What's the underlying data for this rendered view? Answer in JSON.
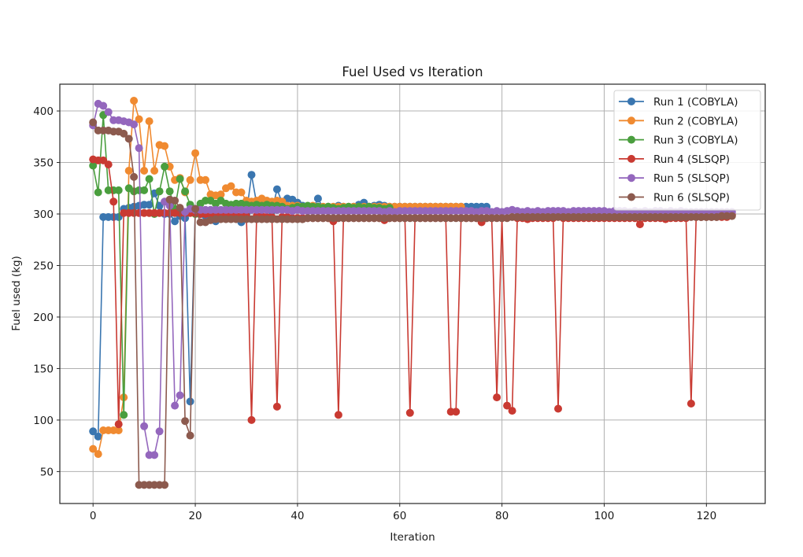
{
  "chart_data": {
    "type": "line",
    "title": "Fuel Used vs Iteration",
    "xlabel": "Iteration",
    "ylabel": "Fuel used (kg)",
    "xlim": [
      -6.5,
      131.5
    ],
    "ylim": [
      19,
      426
    ],
    "xticks": [
      0,
      20,
      40,
      60,
      80,
      100,
      120
    ],
    "yticks": [
      50,
      100,
      150,
      200,
      250,
      300,
      350,
      400
    ],
    "grid": true,
    "legend_position": "upper right",
    "marker": "circle",
    "series": [
      {
        "name": "Run 1 (COBYLA)",
        "color": "#3a76b0",
        "x": [
          0,
          1,
          2,
          3,
          4,
          5,
          6,
          7,
          8,
          9,
          10,
          11,
          12,
          13,
          14,
          15,
          16,
          17,
          18,
          19,
          20,
          21,
          22,
          23,
          24,
          25,
          26,
          27,
          28,
          29,
          30,
          31,
          32,
          33,
          34,
          35,
          36,
          37,
          38,
          39,
          40,
          41,
          42,
          43,
          44,
          45,
          46,
          47,
          48,
          49,
          50,
          51,
          52,
          53,
          54,
          55,
          56,
          57,
          58,
          59,
          60,
          61,
          62,
          63,
          64,
          65,
          66,
          67,
          68,
          69,
          70,
          71,
          72,
          73,
          74,
          75,
          76,
          77
        ],
        "y": [
          89,
          84,
          297,
          297,
          297,
          297,
          305,
          306,
          307,
          308,
          309,
          309,
          320,
          308,
          300,
          300,
          293,
          298,
          296,
          118,
          305,
          300,
          298,
          296,
          293,
          298,
          302,
          299,
          297,
          292,
          300,
          338,
          310,
          308,
          305,
          303,
          324,
          311,
          315,
          314,
          311,
          308,
          306,
          305,
          315,
          306,
          307,
          306,
          308,
          307,
          306,
          307,
          309,
          311,
          307,
          308,
          309,
          308,
          307,
          307,
          307,
          307,
          307,
          307,
          307,
          307,
          307,
          307,
          307,
          307,
          307,
          307,
          307,
          307,
          307,
          307,
          307,
          307
        ]
      },
      {
        "name": "Run 2 (COBYLA)",
        "color": "#f08a30",
        "x": [
          0,
          1,
          2,
          3,
          4,
          5,
          6,
          7,
          8,
          9,
          10,
          11,
          12,
          13,
          14,
          15,
          16,
          17,
          18,
          19,
          20,
          21,
          22,
          23,
          24,
          25,
          26,
          27,
          28,
          29,
          30,
          31,
          32,
          33,
          34,
          35,
          36,
          37,
          38,
          39,
          40,
          41,
          42,
          43,
          44,
          45,
          46,
          47,
          48,
          49,
          50,
          51,
          52,
          53,
          54,
          55,
          56,
          57,
          58,
          59,
          60,
          61,
          62,
          63,
          64,
          65,
          66,
          67,
          68,
          69,
          70,
          71,
          72
        ],
        "y": [
          72,
          67,
          90,
          90,
          90,
          90,
          122,
          342,
          410,
          392,
          342,
          390,
          342,
          367,
          366,
          346,
          333,
          335,
          321,
          333,
          359,
          333,
          333,
          319,
          318,
          319,
          325,
          327,
          321,
          321,
          313,
          312,
          313,
          315,
          313,
          312,
          313,
          312,
          308,
          308,
          308,
          307,
          307,
          308,
          307,
          307,
          307,
          307,
          307,
          307,
          307,
          307,
          307,
          307,
          307,
          307,
          307,
          307,
          307,
          307,
          307,
          307,
          307,
          307,
          307,
          307,
          307,
          307,
          307,
          307,
          307,
          307,
          307
        ]
      },
      {
        "name": "Run 3 (COBYLA)",
        "color": "#4a9e3e",
        "x": [
          0,
          1,
          2,
          3,
          4,
          5,
          6,
          7,
          8,
          9,
          10,
          11,
          12,
          13,
          14,
          15,
          16,
          17,
          18,
          19,
          20,
          21,
          22,
          23,
          24,
          25,
          26,
          27,
          28,
          29,
          30,
          31,
          32,
          33,
          34,
          35,
          36,
          37,
          38,
          39,
          40,
          41,
          42,
          43,
          44,
          45,
          46,
          47,
          48,
          49,
          50,
          51,
          52,
          53,
          54,
          55,
          56,
          57,
          58
        ],
        "y": [
          347,
          321,
          396,
          323,
          323,
          323,
          105,
          325,
          322,
          323,
          323,
          334,
          300,
          322,
          346,
          322,
          305,
          334,
          322,
          309,
          300,
          310,
          313,
          313,
          310,
          313,
          310,
          309,
          310,
          310,
          309,
          308,
          309,
          308,
          309,
          308,
          308,
          307,
          305,
          306,
          307,
          307,
          308,
          307,
          307,
          306,
          307,
          306,
          305,
          306,
          307,
          306,
          307,
          306,
          307,
          306,
          306,
          305,
          306
        ]
      },
      {
        "name": "Run 4 (SLSQP)",
        "color": "#c93a32",
        "x": [
          0,
          1,
          2,
          3,
          4,
          5,
          6,
          7,
          8,
          9,
          10,
          11,
          12,
          13,
          14,
          15,
          16,
          17,
          18,
          19,
          20,
          21,
          22,
          23,
          24,
          25,
          26,
          27,
          28,
          29,
          30,
          31,
          32,
          33,
          34,
          35,
          36,
          37,
          38,
          39,
          40,
          41,
          42,
          43,
          44,
          45,
          46,
          47,
          48,
          49,
          50,
          51,
          52,
          53,
          54,
          55,
          56,
          57,
          58,
          59,
          60,
          61,
          62,
          63,
          64,
          65,
          66,
          67,
          68,
          69,
          70,
          71,
          72,
          73,
          74,
          75,
          76,
          77,
          78,
          79,
          80,
          81,
          82,
          83,
          84,
          85,
          86,
          87,
          88,
          89,
          90,
          91,
          92,
          93,
          94,
          95,
          96,
          97,
          98,
          99,
          100,
          101,
          102,
          103,
          104,
          105,
          106,
          107,
          108,
          109,
          110,
          111,
          112,
          113,
          114,
          115,
          116,
          117,
          118,
          119,
          120,
          121,
          122,
          123,
          124,
          125
        ],
        "y": [
          353,
          352,
          352,
          348,
          312,
          96,
          301,
          301,
          301,
          301,
          301,
          301,
          301,
          301,
          301,
          301,
          301,
          301,
          301,
          301,
          301,
          300,
          300,
          300,
          299,
          299,
          299,
          299,
          298,
          298,
          298,
          100,
          298,
          298,
          297,
          297,
          113,
          297,
          297,
          296,
          296,
          296,
          296,
          296,
          296,
          296,
          296,
          293,
          105,
          296,
          296,
          296,
          296,
          296,
          296,
          296,
          296,
          294,
          296,
          296,
          296,
          296,
          107,
          296,
          296,
          296,
          296,
          296,
          296,
          296,
          108,
          108,
          296,
          296,
          296,
          296,
          292,
          296,
          296,
          122,
          296,
          114,
          109,
          296,
          296,
          295,
          296,
          296,
          296,
          296,
          296,
          111,
          296,
          296,
          296,
          296,
          296,
          296,
          296,
          296,
          296,
          296,
          296,
          296,
          296,
          296,
          296,
          290,
          296,
          296,
          296,
          296,
          295,
          296,
          296,
          296,
          296,
          116,
          297,
          297,
          297,
          297,
          297,
          297,
          297,
          299
        ]
      },
      {
        "name": "Run 5 (SLSQP)",
        "color": "#9467bd",
        "x": [
          0,
          1,
          2,
          3,
          4,
          5,
          6,
          7,
          8,
          9,
          10,
          11,
          12,
          13,
          14,
          15,
          16,
          17,
          18,
          19,
          20,
          21,
          22,
          23,
          24,
          25,
          26,
          27,
          28,
          29,
          30,
          31,
          32,
          33,
          34,
          35,
          36,
          37,
          38,
          39,
          40,
          41,
          42,
          43,
          44,
          45,
          46,
          47,
          48,
          49,
          50,
          51,
          52,
          53,
          54,
          55,
          56,
          57,
          58,
          59,
          60,
          61,
          62,
          63,
          64,
          65,
          66,
          67,
          68,
          69,
          70,
          71,
          72,
          73,
          74,
          75,
          76,
          77,
          78,
          79,
          80,
          81,
          82,
          83,
          84,
          85,
          86,
          87,
          88,
          89,
          90,
          91,
          92,
          93,
          94,
          95,
          96,
          97,
          98,
          99,
          100,
          101,
          102,
          103,
          104,
          105,
          106,
          107,
          108,
          109,
          110,
          111,
          112,
          113,
          114,
          115,
          116,
          117,
          118,
          119,
          120,
          121,
          122,
          123,
          124,
          125
        ],
        "y": [
          386,
          407,
          405,
          399,
          391,
          391,
          390,
          389,
          387,
          364,
          94,
          66,
          66,
          89,
          312,
          308,
          114,
          124,
          302,
          305,
          304,
          304,
          304,
          304,
          304,
          304,
          304,
          304,
          304,
          304,
          304,
          304,
          304,
          304,
          304,
          304,
          304,
          304,
          304,
          303,
          304,
          303,
          303,
          303,
          303,
          303,
          303,
          303,
          303,
          303,
          303,
          303,
          303,
          303,
          303,
          303,
          303,
          302,
          303,
          302,
          303,
          303,
          303,
          303,
          303,
          303,
          303,
          303,
          303,
          303,
          303,
          303,
          303,
          303,
          303,
          302,
          303,
          303,
          302,
          303,
          302,
          303,
          304,
          303,
          302,
          303,
          302,
          303,
          302,
          303,
          303,
          303,
          303,
          302,
          303,
          303,
          303,
          303,
          303,
          303,
          303,
          302,
          303,
          303,
          303,
          302,
          303,
          302,
          303,
          302,
          303,
          303,
          302,
          303,
          302,
          303,
          302,
          302,
          302,
          302,
          302,
          302,
          302,
          302,
          302,
          302
        ]
      },
      {
        "name": "Run 6 (SLSQP)",
        "color": "#8c5a4e",
        "x": [
          0,
          1,
          2,
          3,
          4,
          5,
          6,
          7,
          8,
          9,
          10,
          11,
          12,
          13,
          14,
          15,
          16,
          17,
          18,
          19,
          20,
          21,
          22,
          23,
          24,
          25,
          26,
          27,
          28,
          29,
          30,
          31,
          32,
          33,
          34,
          35,
          36,
          37,
          38,
          39,
          40,
          41,
          42,
          43,
          44,
          45,
          46,
          47,
          48,
          49,
          50,
          51,
          52,
          53,
          54,
          55,
          56,
          57,
          58,
          59,
          60,
          61,
          62,
          63,
          64,
          65,
          66,
          67,
          68,
          69,
          70,
          71,
          72,
          73,
          74,
          75,
          76,
          77,
          78,
          79,
          80,
          81,
          82,
          83,
          84,
          85,
          86,
          87,
          88,
          89,
          90,
          91,
          92,
          93,
          94,
          95,
          96,
          97,
          98,
          99,
          100,
          101,
          102,
          103,
          104,
          105,
          106,
          107,
          108,
          109,
          110,
          111,
          112,
          113,
          114,
          115,
          116,
          117,
          118,
          119,
          120,
          121,
          122,
          123,
          124,
          125
        ],
        "y": [
          389,
          381,
          381,
          381,
          380,
          380,
          378,
          373,
          336,
          37,
          37,
          37,
          37,
          37,
          37,
          314,
          313,
          306,
          99,
          85,
          305,
          292,
          292,
          294,
          295,
          295,
          295,
          295,
          295,
          295,
          295,
          295,
          295,
          295,
          295,
          295,
          295,
          295,
          295,
          295,
          295,
          295,
          296,
          296,
          296,
          296,
          296,
          296,
          296,
          296,
          296,
          296,
          296,
          296,
          296,
          296,
          296,
          296,
          296,
          296,
          296,
          296,
          296,
          296,
          296,
          296,
          296,
          296,
          296,
          296,
          296,
          296,
          296,
          296,
          296,
          296,
          296,
          296,
          296,
          296,
          296,
          296,
          297,
          297,
          297,
          297,
          297,
          297,
          297,
          297,
          297,
          297,
          297,
          297,
          297,
          297,
          297,
          297,
          297,
          297,
          297,
          297,
          297,
          297,
          297,
          297,
          297,
          297,
          297,
          297,
          297,
          297,
          297,
          297,
          297,
          297,
          297,
          297,
          297,
          297,
          297,
          297,
          297,
          298,
          298,
          298
        ]
      }
    ]
  }
}
